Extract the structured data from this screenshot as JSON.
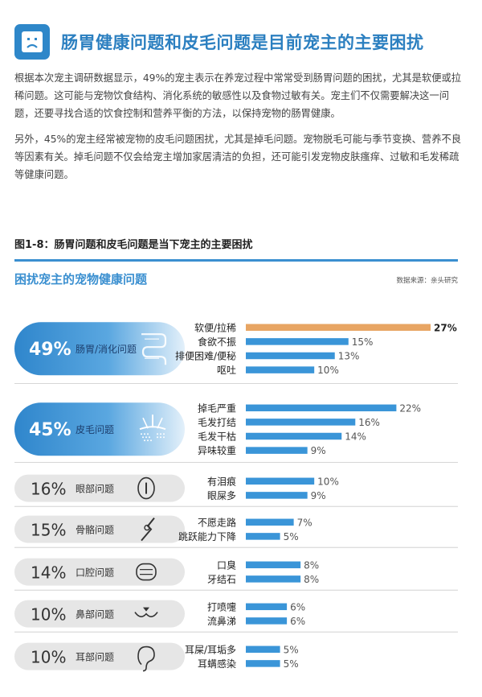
{
  "header": {
    "title": "肠胃健康问题和皮毛问题是目前宠主的主要困扰",
    "icon": "sad-face-icon"
  },
  "paragraphs": [
    "根据本次宠主调研数据显示，49%的宠主表示在养宠过程中常常受到肠胃问题的困扰，尤其是软便或拉稀问题。这可能与宠物饮食结构、消化系统的敏感性以及食物过敏有关。宠主们不仅需要解决这一问题，还要寻找合适的饮食控制和营养平衡的方法，以保持宠物的肠胃健康。",
    "另外，45%的宠主经常被宠物的皮毛问题困扰，尤其是掉毛问题。宠物脱毛可能与季节变换、营养不良等因素有关。掉毛问题不仅会给宠主增加家居清洁的负担，还可能引发宠物皮肤瘙痒、过敏和毛发稀疏等健康问题。"
  ],
  "figure": {
    "label": "图1-8：肠胃问题和皮毛问题是当下宠主的主要困扰",
    "chart_title": "困扰宠主的宠物健康问题",
    "source": "数据来源：亲头研究"
  },
  "colors": {
    "primary": "#2b7fc0",
    "bar": "#3a95d8",
    "highlight": "#e8a563",
    "pill_grey": "#e6e6e6",
    "pill_blue_dark": "#2f86cc",
    "pill_blue_light": "#dcecf8"
  },
  "chart_data": {
    "type": "bar",
    "orientation": "horizontal",
    "title": "困扰宠主的宠物健康问题",
    "groups": [
      {
        "name": "肠胃/消化问题",
        "percent": "49%",
        "value": 49,
        "icon": "intestine-icon",
        "highlighted": true,
        "items": [
          {
            "label": "软便/拉稀",
            "value": 27,
            "text": "27%",
            "top": true
          },
          {
            "label": "食欲不振",
            "value": 15,
            "text": "15%"
          },
          {
            "label": "排便困难/便秘",
            "value": 13,
            "text": "13%"
          },
          {
            "label": "呕吐",
            "value": 10,
            "text": "10%"
          }
        ]
      },
      {
        "name": "皮毛问题",
        "percent": "45%",
        "value": 45,
        "icon": "hair-follicle-icon",
        "highlighted": true,
        "items": [
          {
            "label": "掉毛严重",
            "value": 22,
            "text": "22%"
          },
          {
            "label": "毛发打结",
            "value": 16,
            "text": "16%"
          },
          {
            "label": "毛发干枯",
            "value": 14,
            "text": "14%"
          },
          {
            "label": "异味较重",
            "value": 9,
            "text": "9%"
          }
        ]
      },
      {
        "name": "眼部问题",
        "percent": "16%",
        "value": 16,
        "icon": "eye-icon",
        "highlighted": false,
        "items": [
          {
            "label": "有泪痕",
            "value": 10,
            "text": "10%"
          },
          {
            "label": "眼屎多",
            "value": 9,
            "text": "9%"
          }
        ]
      },
      {
        "name": "骨骼问题",
        "percent": "15%",
        "value": 15,
        "icon": "leg-joint-icon",
        "highlighted": false,
        "items": [
          {
            "label": "不愿走路",
            "value": 7,
            "text": "7%"
          },
          {
            "label": "跳跃能力下降",
            "value": 5,
            "text": "5%"
          }
        ]
      },
      {
        "name": "口腔问题",
        "percent": "14%",
        "value": 14,
        "icon": "mouth-teeth-icon",
        "highlighted": false,
        "items": [
          {
            "label": "口臭",
            "value": 8,
            "text": "8%"
          },
          {
            "label": "牙结石",
            "value": 8,
            "text": "8%"
          }
        ]
      },
      {
        "name": "鼻部问题",
        "percent": "10%",
        "value": 10,
        "icon": "pet-nose-icon",
        "highlighted": false,
        "items": [
          {
            "label": "打喷嚏",
            "value": 6,
            "text": "6%"
          },
          {
            "label": "流鼻涕",
            "value": 6,
            "text": "6%"
          }
        ]
      },
      {
        "name": "耳部问题",
        "percent": "10%",
        "value": 10,
        "icon": "ear-icon",
        "highlighted": false,
        "items": [
          {
            "label": "耳屎/耳垢多",
            "value": 5,
            "text": "5%"
          },
          {
            "label": "耳螨感染",
            "value": 5,
            "text": "5%"
          }
        ]
      }
    ]
  }
}
